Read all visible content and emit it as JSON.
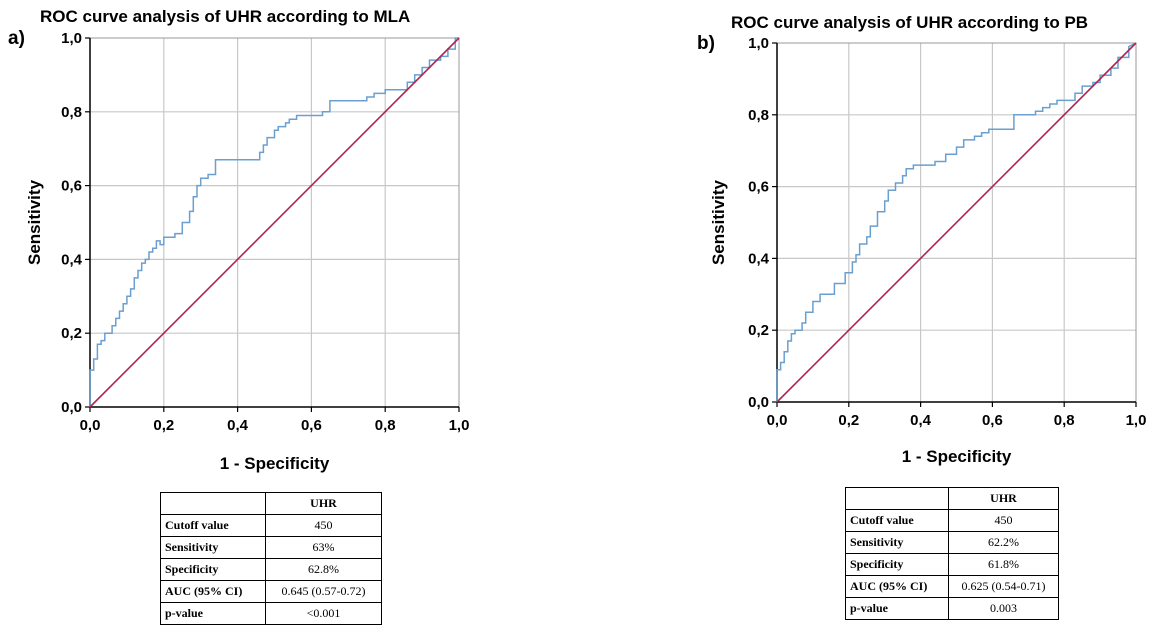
{
  "panels": [
    {
      "letter": "a)",
      "title": "ROC curve analysis of UHR according to MLA",
      "table": {
        "header": [
          "",
          "UHR"
        ],
        "rows": [
          {
            "label": "Cutoff value",
            "value": "450"
          },
          {
            "label": "Sensitivity",
            "value": "63%"
          },
          {
            "label": "Specificity",
            "value": "62.8%"
          },
          {
            "label": "AUC (95% CI)",
            "value": "0.645 (0.57-0.72)"
          },
          {
            "label": "p-value",
            "value": "<0.001"
          }
        ]
      }
    },
    {
      "letter": "b)",
      "title": "ROC curve analysis of UHR according to PB",
      "table": {
        "header": [
          "",
          "UHR"
        ],
        "rows": [
          {
            "label": "Cutoff value",
            "value": "450"
          },
          {
            "label": "Sensitivity",
            "value": "62.2%"
          },
          {
            "label": "Specificity",
            "value": "61.8%"
          },
          {
            "label": "AUC (95% CI)",
            "value": "0.625 (0.54-0.71)"
          },
          {
            "label": "p-value",
            "value": "0.003"
          }
        ]
      }
    }
  ],
  "chart_data": [
    {
      "type": "line",
      "title": "ROC curve analysis of UHR according to MLA",
      "xlabel": "1 - Specificity",
      "ylabel": "Sensitivity",
      "xlim": [
        0,
        1
      ],
      "ylim": [
        0,
        1
      ],
      "xticks": [
        "0,0",
        "0,2",
        "0,4",
        "0,6",
        "0,8",
        "1,0"
      ],
      "yticks": [
        "0,0",
        "0,2",
        "0,4",
        "0,6",
        "0,8",
        "1,0"
      ],
      "grid": true,
      "colors": {
        "roc": "#6a9fd0",
        "reference": "#b5224f",
        "grid": "#c8c8c8"
      },
      "series": [
        {
          "role": "roc",
          "x": [
            0.0,
            0.0,
            0.01,
            0.01,
            0.02,
            0.02,
            0.03,
            0.03,
            0.04,
            0.04,
            0.06,
            0.06,
            0.07,
            0.07,
            0.08,
            0.08,
            0.09,
            0.09,
            0.1,
            0.1,
            0.11,
            0.11,
            0.12,
            0.12,
            0.13,
            0.13,
            0.14,
            0.14,
            0.15,
            0.15,
            0.16,
            0.16,
            0.17,
            0.17,
            0.18,
            0.18,
            0.19,
            0.19,
            0.2,
            0.2,
            0.23,
            0.23,
            0.25,
            0.25,
            0.27,
            0.27,
            0.28,
            0.28,
            0.29,
            0.29,
            0.3,
            0.3,
            0.32,
            0.32,
            0.34,
            0.34,
            0.46,
            0.46,
            0.47,
            0.47,
            0.48,
            0.48,
            0.5,
            0.5,
            0.51,
            0.51,
            0.53,
            0.53,
            0.54,
            0.54,
            0.55,
            0.55,
            0.56,
            0.56,
            0.63,
            0.63,
            0.65,
            0.65,
            0.75,
            0.75,
            0.77,
            0.77,
            0.8,
            0.8,
            0.86,
            0.86,
            0.88,
            0.88,
            0.9,
            0.9,
            0.92,
            0.92,
            0.95,
            0.95,
            0.97,
            0.97,
            0.99,
            0.99,
            1.0
          ],
          "y": [
            0.0,
            0.1,
            0.1,
            0.13,
            0.13,
            0.17,
            0.17,
            0.18,
            0.18,
            0.2,
            0.2,
            0.22,
            0.22,
            0.24,
            0.24,
            0.26,
            0.26,
            0.28,
            0.28,
            0.3,
            0.3,
            0.32,
            0.32,
            0.35,
            0.35,
            0.37,
            0.37,
            0.39,
            0.39,
            0.4,
            0.4,
            0.42,
            0.42,
            0.43,
            0.43,
            0.45,
            0.45,
            0.44,
            0.44,
            0.46,
            0.46,
            0.47,
            0.47,
            0.5,
            0.5,
            0.53,
            0.53,
            0.57,
            0.57,
            0.6,
            0.6,
            0.62,
            0.62,
            0.63,
            0.63,
            0.67,
            0.67,
            0.69,
            0.69,
            0.71,
            0.71,
            0.73,
            0.73,
            0.75,
            0.75,
            0.76,
            0.76,
            0.77,
            0.77,
            0.78,
            0.78,
            0.78,
            0.78,
            0.79,
            0.79,
            0.8,
            0.8,
            0.83,
            0.83,
            0.84,
            0.84,
            0.85,
            0.85,
            0.86,
            0.86,
            0.88,
            0.88,
            0.9,
            0.9,
            0.92,
            0.92,
            0.94,
            0.94,
            0.95,
            0.95,
            0.97,
            0.97,
            1.0,
            1.0
          ]
        },
        {
          "role": "reference",
          "x": [
            0,
            1
          ],
          "y": [
            0,
            1
          ]
        }
      ]
    },
    {
      "type": "line",
      "title": "ROC curve analysis of UHR according to PB",
      "xlabel": "1 - Specificity",
      "ylabel": "Sensitivity",
      "xlim": [
        0,
        1
      ],
      "ylim": [
        0,
        1
      ],
      "xticks": [
        "0,0",
        "0,2",
        "0,4",
        "0,6",
        "0,8",
        "1,0"
      ],
      "yticks": [
        "0,0",
        "0,2",
        "0,4",
        "0,6",
        "0,8",
        "1,0"
      ],
      "grid": true,
      "colors": {
        "roc": "#6a9fd0",
        "reference": "#b5224f",
        "grid": "#c8c8c8"
      },
      "series": [
        {
          "role": "roc",
          "x": [
            0.0,
            0.0,
            0.01,
            0.01,
            0.02,
            0.02,
            0.03,
            0.03,
            0.04,
            0.04,
            0.05,
            0.05,
            0.07,
            0.07,
            0.08,
            0.08,
            0.1,
            0.1,
            0.12,
            0.12,
            0.16,
            0.16,
            0.19,
            0.19,
            0.21,
            0.21,
            0.22,
            0.22,
            0.23,
            0.23,
            0.25,
            0.25,
            0.26,
            0.26,
            0.28,
            0.28,
            0.3,
            0.3,
            0.31,
            0.31,
            0.33,
            0.33,
            0.35,
            0.35,
            0.36,
            0.36,
            0.38,
            0.38,
            0.44,
            0.44,
            0.47,
            0.47,
            0.5,
            0.5,
            0.52,
            0.52,
            0.55,
            0.55,
            0.57,
            0.57,
            0.59,
            0.59,
            0.66,
            0.66,
            0.72,
            0.72,
            0.74,
            0.74,
            0.76,
            0.76,
            0.78,
            0.78,
            0.83,
            0.83,
            0.85,
            0.85,
            0.88,
            0.88,
            0.9,
            0.9,
            0.93,
            0.93,
            0.95,
            0.95,
            0.98,
            0.98,
            1.0
          ],
          "y": [
            0.0,
            0.09,
            0.09,
            0.11,
            0.11,
            0.14,
            0.14,
            0.17,
            0.17,
            0.19,
            0.19,
            0.2,
            0.2,
            0.22,
            0.22,
            0.25,
            0.25,
            0.28,
            0.28,
            0.3,
            0.3,
            0.33,
            0.33,
            0.36,
            0.36,
            0.39,
            0.39,
            0.41,
            0.41,
            0.44,
            0.44,
            0.46,
            0.46,
            0.49,
            0.49,
            0.53,
            0.53,
            0.56,
            0.56,
            0.59,
            0.59,
            0.61,
            0.61,
            0.63,
            0.63,
            0.65,
            0.65,
            0.66,
            0.66,
            0.67,
            0.67,
            0.69,
            0.69,
            0.71,
            0.71,
            0.73,
            0.73,
            0.74,
            0.74,
            0.75,
            0.75,
            0.76,
            0.76,
            0.8,
            0.8,
            0.81,
            0.81,
            0.82,
            0.82,
            0.83,
            0.83,
            0.84,
            0.84,
            0.86,
            0.86,
            0.88,
            0.88,
            0.89,
            0.89,
            0.91,
            0.91,
            0.93,
            0.93,
            0.96,
            0.96,
            0.99,
            1.0
          ]
        },
        {
          "role": "reference",
          "x": [
            0,
            1
          ],
          "y": [
            0,
            1
          ]
        }
      ]
    }
  ]
}
